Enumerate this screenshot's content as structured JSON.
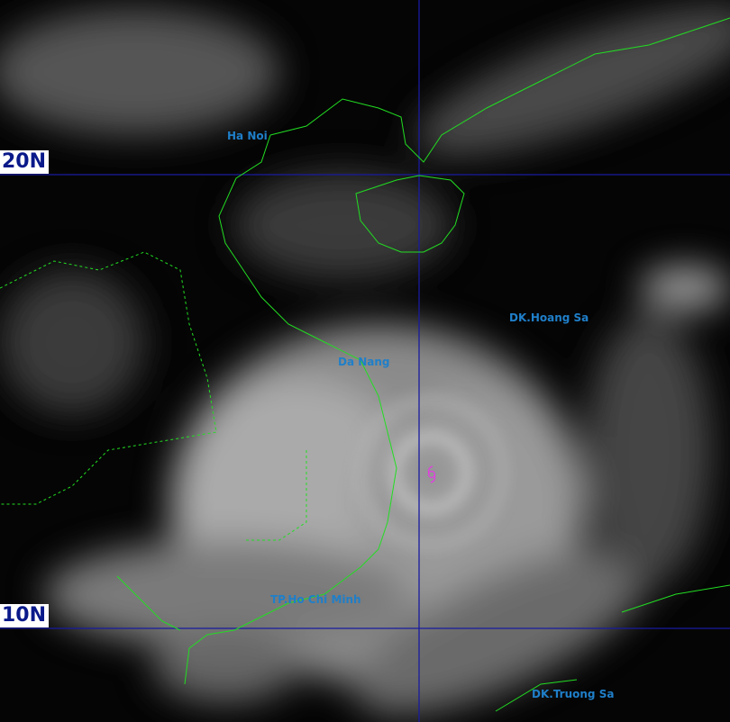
{
  "map": {
    "type": "satellite-infrared-image",
    "colors": {
      "gridline": "#1a1aa0",
      "coastline": "#22dd22",
      "city_label": "#1f7fc9",
      "storm_symbol": "#e040e0",
      "lat_label_text": "#0a1a8a"
    },
    "latitude_labels": [
      "20N",
      "10N"
    ],
    "cities": [
      {
        "name": "Ha Noi"
      },
      {
        "name": "DK.Hoang Sa"
      },
      {
        "name": "Da Nang"
      },
      {
        "name": "TP.Ho Chi Minh"
      },
      {
        "name": "DK.Truong Sa"
      }
    ],
    "storm_symbol": "typhoon-icon"
  }
}
